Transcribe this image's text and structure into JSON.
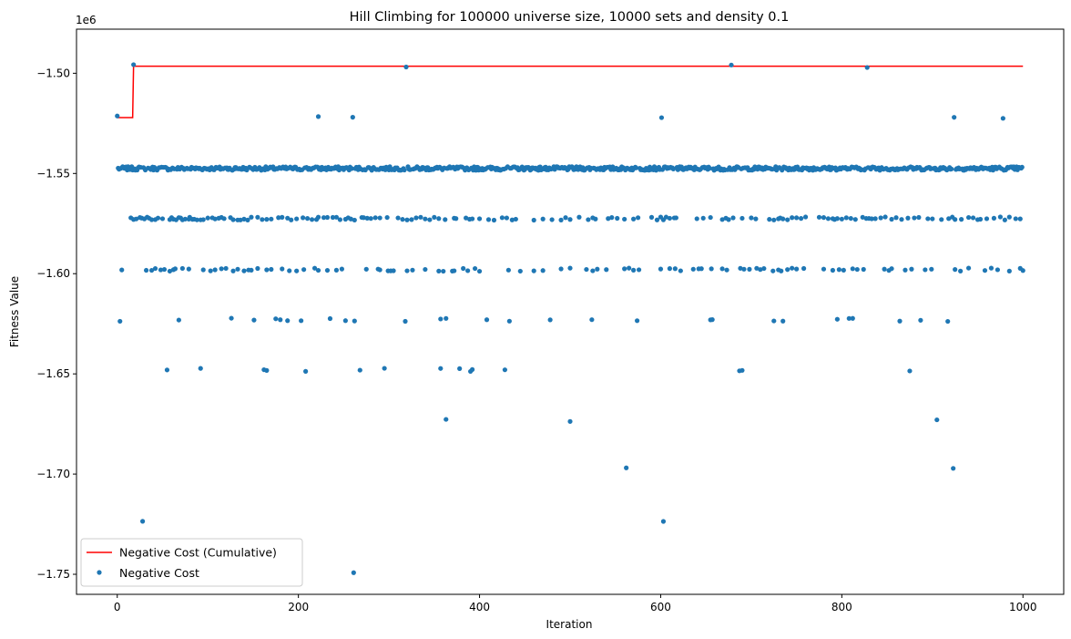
{
  "chart_data": {
    "type": "line+scatter",
    "title": "Hill Climbing for 100000 universe size, 10000 sets and density 0.1",
    "xlabel": "Iteration",
    "ylabel": "Fitness Value",
    "y_offset_label": "1e6",
    "xlim": [
      -45,
      1045
    ],
    "ylim": [
      -1.76,
      -1.478
    ],
    "x_ticks": [
      0,
      200,
      400,
      600,
      800,
      1000
    ],
    "x_tick_labels": [
      "0",
      "200",
      "400",
      "600",
      "800",
      "1000"
    ],
    "y_ticks": [
      -1.75,
      -1.7,
      -1.65,
      -1.6,
      -1.55,
      -1.5
    ],
    "y_tick_labels": [
      "−1.75",
      "−1.70",
      "−1.65",
      "−1.60",
      "−1.55",
      "−1.50"
    ],
    "grid": false,
    "legend_position": "lower-left",
    "series": [
      {
        "name": "Negative Cost (Cumulative)",
        "kind": "line",
        "color": "#ff0000",
        "x": [
          0,
          17,
          18,
          1000
        ],
        "y": [
          -1.5221,
          -1.5221,
          -1.4965,
          -1.4965
        ]
      },
      {
        "name": "Negative Cost",
        "kind": "scatter",
        "color": "#1f77b4",
        "base_level": -1.5475,
        "levels": [
          {
            "y": -1.5725,
            "x": [
              15,
              18,
              21,
              25,
              27,
              30,
              33,
              35,
              38,
              42,
              45,
              50,
              58,
              60,
              62,
              65,
              68,
              70,
              72,
              75,
              79,
              80,
              83,
              85,
              88,
              92,
              95,
              100,
              105,
              108,
              112,
              115,
              118,
              125,
              128,
              133,
              136,
              140,
              144,
              148,
              155,
              160,
              165,
              170,
              178,
              182,
              188,
              192,
              198,
              205,
              210,
              215,
              220,
              222,
              228,
              232,
              238,
              242,
              246,
              252,
              255,
              258,
              262,
              270,
              272,
              276,
              280,
              285,
              290,
              298,
              310,
              315,
              320,
              325,
              330,
              335,
              340,
              345,
              350,
              355,
              362,
              372,
              374,
              385,
              389,
              392,
              400,
              410,
              416,
              425,
              430,
              436,
              440,
              460,
              470,
              480,
              490,
              495,
              500,
              510,
              520,
              525,
              528,
              542,
              546,
              552,
              560,
              570,
              575,
              590,
              596,
              600,
              603,
              606,
              610,
              615,
              617,
              640,
              647,
              655,
              668,
              672,
              675,
              680,
              690,
              700,
              705,
              720,
              725,
              730,
              732,
              735,
              740,
              745,
              750,
              755,
              760,
              775,
              780,
              785,
              790,
              792,
              795,
              800,
              805,
              810,
              815,
              823,
              827,
              830,
              833,
              837,
              843,
              848,
              855,
              860,
              866,
              873,
              880,
              885,
              895,
              900,
              910,
              918,
              922,
              925,
              932,
              940,
              945,
              950,
              953,
              960,
              968,
              975,
              980,
              985,
              992,
              997
            ]
          },
          {
            "y": -1.598,
            "x": [
              5,
              32,
              38,
              42,
              48,
              52,
              58,
              62,
              64,
              72,
              79,
              95,
              103,
              108,
              115,
              120,
              128,
              133,
              140,
              145,
              148,
              155,
              165,
              170,
              182,
              190,
              198,
              206,
              218,
              222,
              232,
              242,
              248,
              275,
              288,
              290,
              299,
              302,
              305,
              320,
              326,
              340,
              355,
              360,
              370,
              372,
              382,
              387,
              395,
              400,
              432,
              445,
              460,
              470,
              490,
              500,
              518,
              525,
              530,
              540,
              560,
              565,
              570,
              576,
              600,
              610,
              616,
              622,
              636,
              642,
              645,
              656,
              668,
              673,
              688,
              692,
              698,
              706,
              710,
              714,
              724,
              730,
              733,
              740,
              745,
              750,
              758,
              780,
              790,
              797,
              802,
              812,
              817,
              824,
              847,
              852,
              855,
              870,
              877,
              892,
              899,
              925,
              931,
              940,
              958,
              965,
              972,
              985,
              997,
              1000
            ]
          },
          {
            "y": -1.623,
            "x": [
              3,
              68,
              126,
              151,
              175,
              180,
              188,
              203,
              235,
              252,
              262,
              318,
              357,
              363,
              408,
              433,
              478,
              524,
              574,
              655,
              657,
              725,
              735,
              795,
              808,
              812,
              864,
              887,
              917
            ]
          },
          {
            "y": -1.648,
            "x": [
              55,
              92,
              162,
              165,
              208,
              268,
              295,
              357,
              378,
              390,
              392,
              428,
              687,
              690,
              875
            ]
          },
          {
            "y": -1.673,
            "x": [
              363,
              500,
              905
            ]
          },
          {
            "y": -1.697,
            "x": [
              562,
              923
            ]
          },
          {
            "y": -1.724,
            "x": [
              28,
              603
            ]
          },
          {
            "y": -1.749,
            "x": [
              261
            ]
          },
          {
            "y": -1.522,
            "x": [
              0,
              222,
              260,
              601,
              924,
              978
            ]
          },
          {
            "y": -1.4965,
            "x": [
              18,
              319,
              678,
              828
            ]
          }
        ]
      }
    ]
  }
}
